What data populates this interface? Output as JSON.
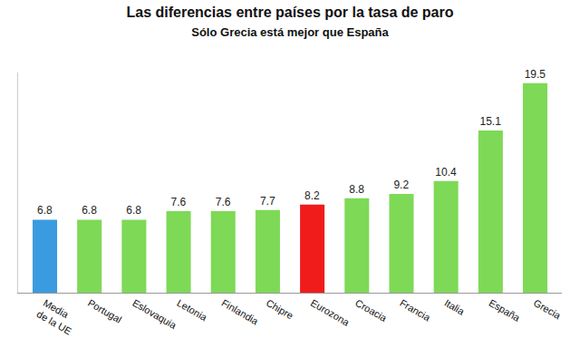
{
  "chart_data": {
    "type": "bar",
    "title": "Las diferencias entre países por la tasa de paro",
    "subtitle": "Sólo Grecia está mejor que España",
    "categories": [
      "Media de la UE",
      "Portugal",
      "Eslovaquia",
      "Letonia",
      "Finlandia",
      "Chipre",
      "Eurozona",
      "Croacia",
      "Francia",
      "Italia",
      "España",
      "Grecia"
    ],
    "values": [
      6.8,
      6.8,
      6.8,
      7.6,
      7.6,
      7.7,
      8.2,
      8.8,
      9.2,
      10.4,
      15.1,
      19.5
    ],
    "colors": [
      "#3b9be0",
      "#7ed957",
      "#7ed957",
      "#7ed957",
      "#7ed957",
      "#7ed957",
      "#f01c1c",
      "#7ed957",
      "#7ed957",
      "#7ed957",
      "#7ed957",
      "#7ed957"
    ],
    "ylim": [
      0,
      20.5
    ],
    "yticks": [],
    "grid": false,
    "data_labels": true,
    "tick_labels": "x"
  }
}
